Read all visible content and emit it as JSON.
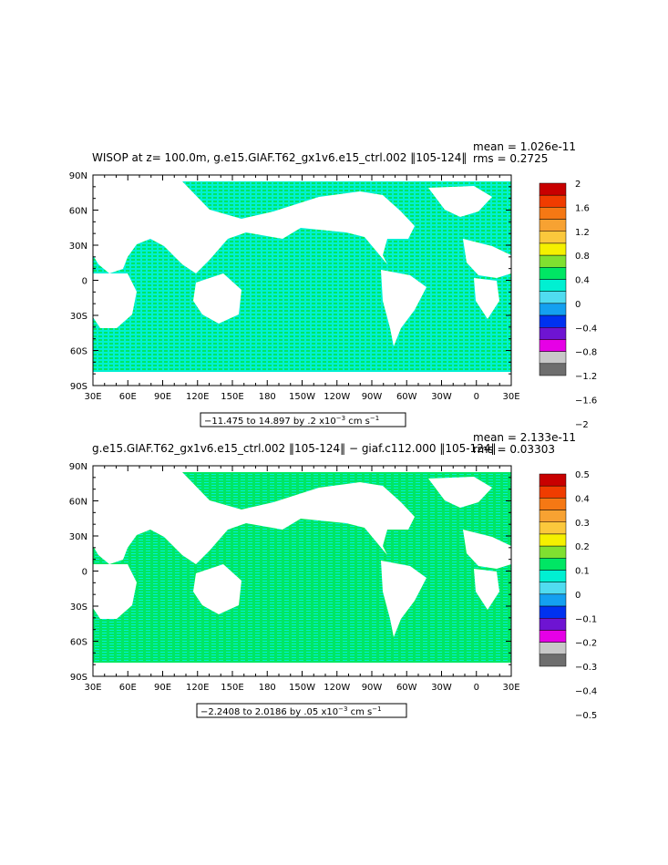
{
  "panels": [
    {
      "title": "WISOP at z= 100.0m, g.e15.GIAF.T62_gx1v6.e15_ctrl.002 ‖105-124‖",
      "mean": "mean = 1.026e-11",
      "rms": "rms = 0.2725",
      "range_text": "−11.475 to 14.897 by .2 x10",
      "range_exp": "−3",
      "range_unit": " cm s",
      "range_unit_exp": "−1",
      "colorbar_labels": [
        "2",
        "1.6",
        "1.2",
        "0.8",
        "0.4",
        "0",
        "−0.4",
        "−0.8",
        "−1.2",
        "−1.6",
        "−2"
      ],
      "colors": [
        "#c80000",
        "#f03c00",
        "#f57814",
        "#f7a232",
        "#fbc83c",
        "#f5f000",
        "#80e030",
        "#00e664",
        "#00f0d2",
        "#50dcf0",
        "#14a0f0",
        "#0032f0",
        "#6e14d2",
        "#e600e6",
        "#c8c8c8",
        "#6e6e6e"
      ]
    },
    {
      "title": "g.e15.GIAF.T62_gx1v6.e15_ctrl.002 ‖105-124‖ − giaf.c112.000 ‖105-124‖",
      "mean": "mean = 2.133e-11",
      "rms": "rms = 0.03303",
      "range_text": "−2.2408 to 2.0186 by .05 x10",
      "range_exp": "−3",
      "range_unit": " cm s",
      "range_unit_exp": "−1",
      "colorbar_labels": [
        "0.5",
        "0.4",
        "0.3",
        "0.2",
        "0.1",
        "0",
        "−0.1",
        "−0.2",
        "−0.3",
        "−0.4",
        "−0.5"
      ],
      "colors": [
        "#c80000",
        "#f03c00",
        "#f57814",
        "#f7a232",
        "#fbc83c",
        "#f5f000",
        "#80e030",
        "#00e664",
        "#00f0d2",
        "#50dcf0",
        "#14a0f0",
        "#0032f0",
        "#6e14d2",
        "#e600e6",
        "#c8c8c8",
        "#6e6e6e"
      ]
    }
  ],
  "lat_labels": [
    "90N",
    "60N",
    "30N",
    "0",
    "30S",
    "60S",
    "90S"
  ],
  "lon_labels": [
    "30E",
    "60E",
    "90E",
    "120E",
    "150E",
    "180",
    "150W",
    "120W",
    "90W",
    "60W",
    "30W",
    "0",
    "30E"
  ]
}
